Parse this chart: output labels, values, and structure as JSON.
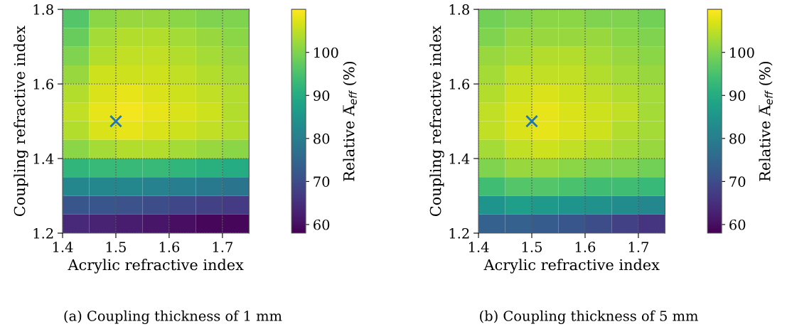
{
  "chart_data": [
    {
      "type": "heatmap",
      "xlabel": "Acrylic refractive index",
      "ylabel": "Coupling refractive index",
      "clabel": "Relative A̅$_{eff}$ (%)",
      "annotations": [
        "(a) Coupling thickness of 1 mm"
      ],
      "x": [
        1.425,
        1.475,
        1.525,
        1.575,
        1.625,
        1.675,
        1.725
      ],
      "y": [
        1.775,
        1.725,
        1.675,
        1.625,
        1.575,
        1.525,
        1.475,
        1.425,
        1.375,
        1.325,
        1.275,
        1.225
      ],
      "cells": [
        [
          96,
          101,
          102,
          102,
          101,
          100,
          100
        ],
        [
          98,
          103,
          104,
          104,
          103,
          102,
          101
        ],
        [
          100,
          104,
          105,
          105,
          104,
          103,
          102
        ],
        [
          102,
          106,
          106,
          106,
          105,
          104,
          103
        ],
        [
          104,
          107,
          108,
          107,
          106,
          105,
          104
        ],
        [
          105,
          108,
          109,
          108,
          107,
          106,
          104
        ],
        [
          104,
          107,
          108,
          107,
          106,
          105,
          104
        ],
        [
          101,
          103,
          104,
          104,
          103,
          102,
          101
        ],
        [
          92,
          93,
          93,
          93,
          92,
          91,
          90
        ],
        [
          82,
          82,
          82,
          81,
          80,
          79,
          78
        ],
        [
          72,
          72,
          71,
          70,
          69,
          68,
          67
        ],
        [
          64,
          63,
          62,
          61,
          60,
          59,
          59
        ]
      ],
      "clim": [
        58,
        110
      ],
      "cticks": [
        60,
        70,
        80,
        90,
        100
      ],
      "xlim": [
        1.4,
        1.75
      ],
      "xticks": [
        1.4,
        1.5,
        1.6,
        1.7
      ],
      "ylim": [
        1.2,
        1.8
      ],
      "yticks": [
        1.2,
        1.4,
        1.6,
        1.8
      ],
      "grid": true,
      "series": [
        {
          "type": "scatter",
          "x": [
            1.5
          ],
          "values": [
            1.5
          ],
          "color": "#1f77b4",
          "marker": "cross"
        }
      ]
    },
    {
      "type": "heatmap",
      "xlabel": "Acrylic refractive index",
      "ylabel": "Coupling refractive index",
      "clabel": "Relative A̅$_{eff}$ (%)",
      "annotations": [
        "(b) Coupling thickness of 5 mm"
      ],
      "x": [
        1.425,
        1.475,
        1.525,
        1.575,
        1.625,
        1.675,
        1.725
      ],
      "y": [
        1.775,
        1.725,
        1.675,
        1.625,
        1.575,
        1.525,
        1.475,
        1.425,
        1.375,
        1.325,
        1.275,
        1.225
      ],
      "cells": [
        [
          99,
          100,
          101,
          101,
          100,
          100,
          99
        ],
        [
          100,
          102,
          102,
          102,
          102,
          101,
          100
        ],
        [
          102,
          103,
          104,
          104,
          103,
          102,
          101
        ],
        [
          103,
          105,
          105,
          105,
          104,
          103,
          102
        ],
        [
          104,
          106,
          107,
          106,
          105,
          104,
          103
        ],
        [
          105,
          107,
          108,
          107,
          106,
          105,
          103
        ],
        [
          105,
          107,
          108,
          107,
          106,
          104,
          103
        ],
        [
          103,
          105,
          106,
          105,
          104,
          103,
          102
        ],
        [
          100,
          102,
          102,
          101,
          100,
          100,
          99
        ],
        [
          94,
          96,
          96,
          95,
          94,
          94,
          93
        ],
        [
          85,
          87,
          86,
          85,
          84,
          83,
          82
        ],
        [
          74,
          74,
          73,
          72,
          70,
          68,
          66
        ]
      ],
      "clim": [
        58,
        110
      ],
      "cticks": [
        60,
        70,
        80,
        90,
        100
      ],
      "xlim": [
        1.4,
        1.75
      ],
      "xticks": [
        1.4,
        1.5,
        1.6,
        1.7
      ],
      "ylim": [
        1.2,
        1.8
      ],
      "yticks": [
        1.2,
        1.4,
        1.6,
        1.8
      ],
      "grid": true,
      "series": [
        {
          "type": "scatter",
          "x": [
            1.5
          ],
          "values": [
            1.5
          ],
          "color": "#1f77b4",
          "marker": "cross"
        }
      ]
    }
  ]
}
